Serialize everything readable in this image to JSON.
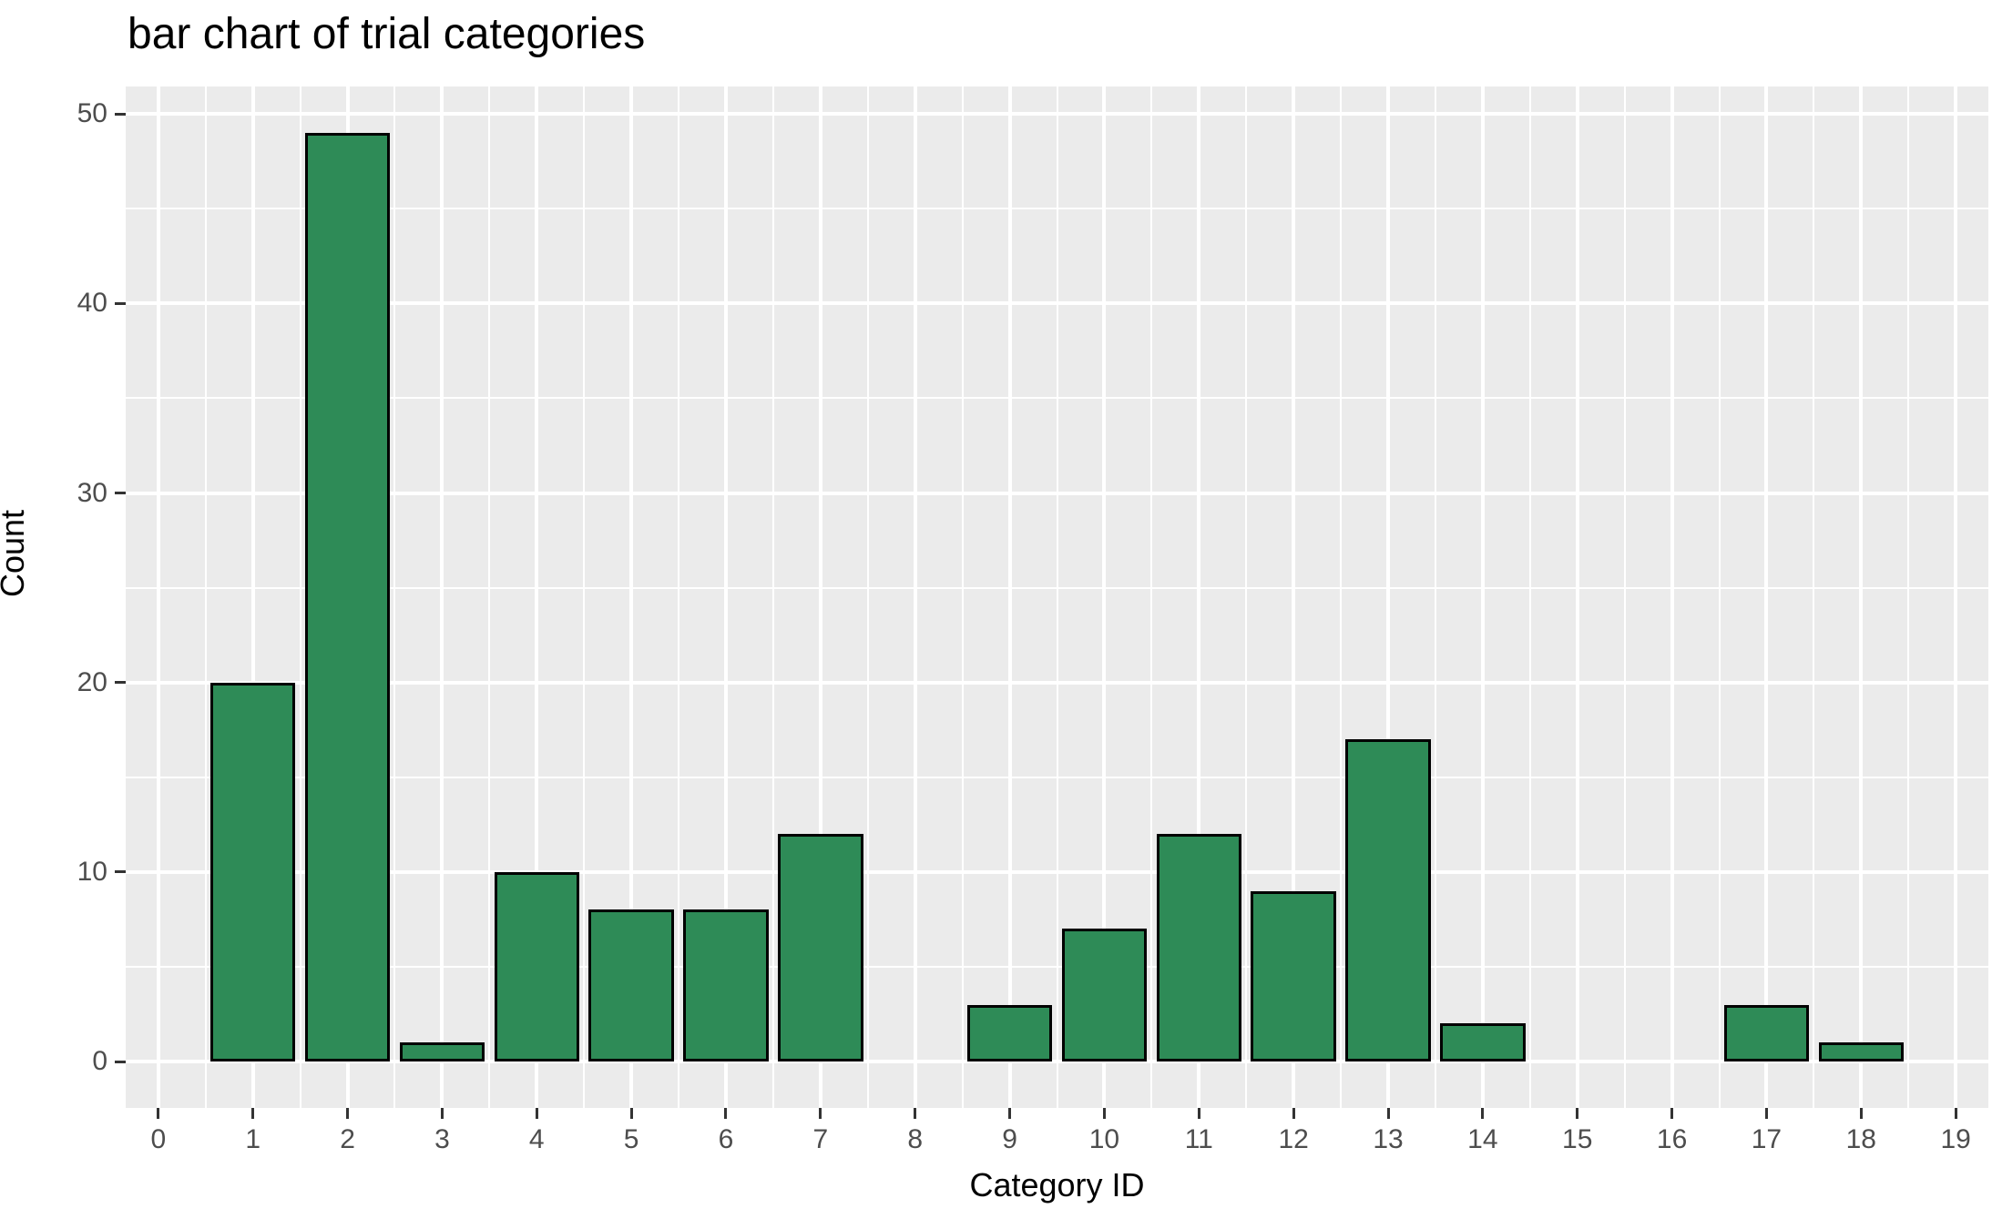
{
  "chart_data": {
    "type": "bar",
    "title": "bar chart of trial categories",
    "xlabel": "Category ID",
    "ylabel": "Count",
    "categories": [
      0,
      1,
      2,
      3,
      4,
      5,
      6,
      7,
      8,
      9,
      10,
      11,
      12,
      13,
      14,
      15,
      16,
      17,
      18,
      19
    ],
    "values": [
      0,
      20,
      49,
      1,
      10,
      8,
      8,
      12,
      0,
      3,
      7,
      12,
      9,
      17,
      2,
      0,
      0,
      3,
      1,
      0
    ],
    "x_ticks": [
      0,
      1,
      2,
      3,
      4,
      5,
      6,
      7,
      8,
      9,
      10,
      11,
      12,
      13,
      14,
      15,
      16,
      17,
      18,
      19
    ],
    "y_ticks": [
      0,
      10,
      20,
      30,
      40,
      50
    ],
    "y_minor_ticks": [
      5,
      15,
      25,
      35,
      45
    ],
    "xlim": [
      -0.345,
      19.345
    ],
    "ylim": [
      -2.45,
      51.45
    ],
    "bar_width": 0.9,
    "grid": "on",
    "legend": "none",
    "colors": {
      "bar_fill": "#2E8B57",
      "bar_stroke": "#000000",
      "panel_background": "#EBEBEB",
      "grid_major": "#FFFFFF",
      "grid_minor": "#FFFFFF",
      "tick_label": "#4D4D4D",
      "tick_mark": "#333333",
      "axis_title": "#000000",
      "page_background": "#FFFFFF"
    }
  }
}
